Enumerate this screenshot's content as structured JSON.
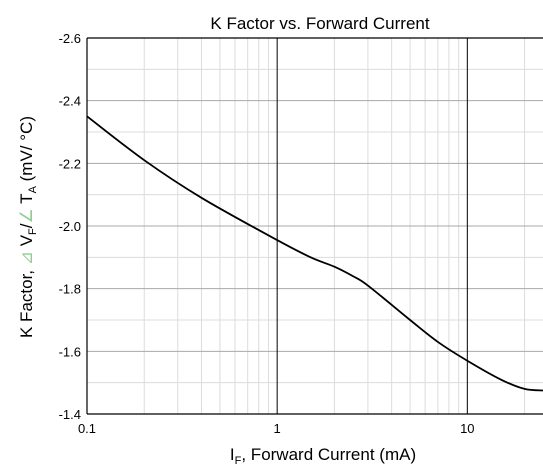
{
  "chart_data": {
    "type": "line",
    "title": "K Factor vs. Forward Current",
    "xlabel": {
      "prefix": "I",
      "sub": "F",
      "rest": ", Forward Current (mA)"
    },
    "ylabel": {
      "prefix": "K Factor, ",
      "delta1": "⊿",
      "v": " V",
      "sub1": "F",
      "slash": "/",
      "delta2": "∠",
      "t": " T",
      "sub2": "A",
      "rest": " (mV/ °C)"
    },
    "x_scale": "log",
    "xlim": [
      0.1,
      25
    ],
    "ylim": [
      -1.4,
      -2.6
    ],
    "y_inverted": true,
    "x_tick_labels": [
      {
        "value": 0.1,
        "label": "0.1"
      },
      {
        "value": 1,
        "label": "1"
      },
      {
        "value": 10,
        "label": "10"
      }
    ],
    "y_tick_labels": [
      {
        "value": -2.6,
        "label": "-2.6"
      },
      {
        "value": -2.4,
        "label": "-2.4"
      },
      {
        "value": -2.2,
        "label": "-2.2"
      },
      {
        "value": -2.0,
        "label": "-2.0"
      },
      {
        "value": -1.8,
        "label": "-1.8"
      },
      {
        "value": -1.6,
        "label": "-1.6"
      },
      {
        "value": -1.4,
        "label": "-1.4"
      }
    ],
    "grid": true,
    "series": [
      {
        "color": "#000000",
        "points": [
          {
            "x": 0.1,
            "y": -2.35
          },
          {
            "x": 0.2,
            "y": -2.21
          },
          {
            "x": 0.4,
            "y": -2.09
          },
          {
            "x": 1.0,
            "y": -1.955
          },
          {
            "x": 1.5,
            "y": -1.9
          },
          {
            "x": 2.0,
            "y": -1.87
          },
          {
            "x": 2.5,
            "y": -1.84
          },
          {
            "x": 3.0,
            "y": -1.81
          },
          {
            "x": 5.0,
            "y": -1.7
          },
          {
            "x": 7.0,
            "y": -1.63
          },
          {
            "x": 10.0,
            "y": -1.57
          },
          {
            "x": 15.0,
            "y": -1.51
          },
          {
            "x": 20.0,
            "y": -1.48
          },
          {
            "x": 25.0,
            "y": -1.475
          }
        ]
      }
    ]
  }
}
